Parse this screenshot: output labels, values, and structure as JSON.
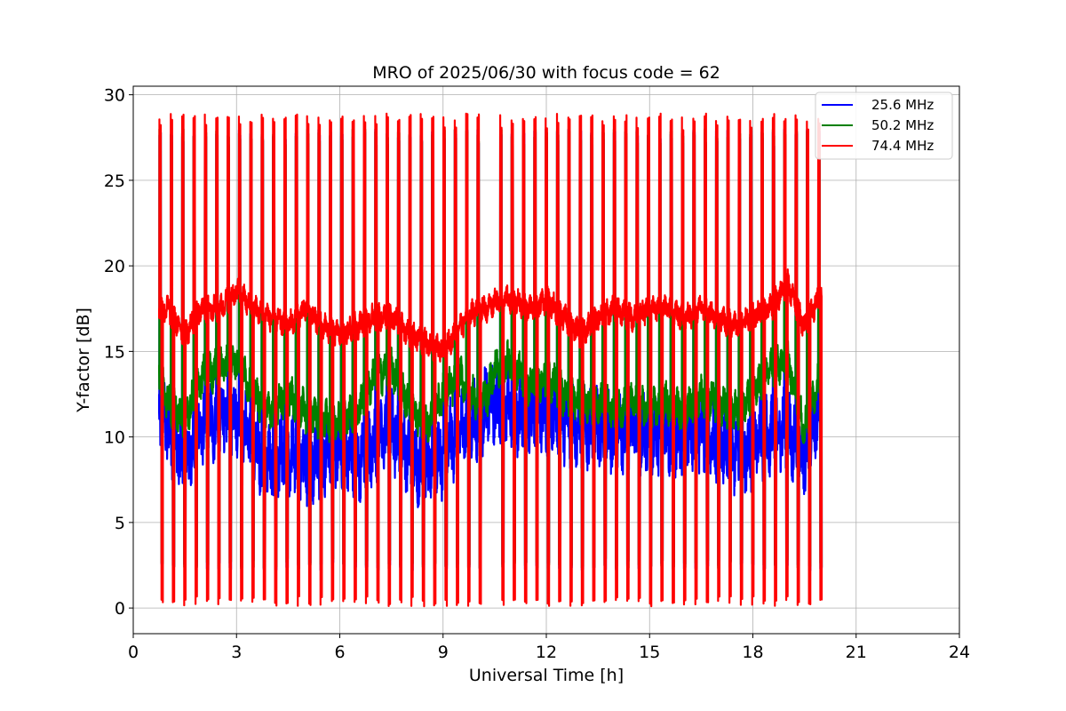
{
  "chart_data": {
    "type": "line",
    "title": "MRO of 2025/06/30 with focus code = 62",
    "xlabel": "Universal Time [h]",
    "ylabel": "Y-factor [dB]",
    "xlim": [
      0,
      24
    ],
    "ylim": [
      -1.5,
      30.5
    ],
    "x_ticks": [
      0,
      3,
      6,
      9,
      12,
      15,
      18,
      21,
      24
    ],
    "y_ticks": [
      0,
      5,
      10,
      15,
      20,
      25,
      30
    ],
    "x_tick_labels": [
      "0",
      "3",
      "6",
      "9",
      "12",
      "15",
      "18",
      "21",
      "24"
    ],
    "y_tick_labels": [
      "0",
      "5",
      "10",
      "15",
      "20",
      "25",
      "30"
    ],
    "grid": true,
    "legend_position": "top-right",
    "data_start_hour": 0.75,
    "data_end_hour": 20.0,
    "gap_hours": [
      10.3,
      10.5
    ],
    "spike_period_hours": 0.33,
    "series": [
      {
        "name": "25.6 MHz",
        "color": "#0000ff",
        "baseline": {
          "x": [
            0.75,
            1.0,
            1.5,
            2.0,
            2.5,
            3.0,
            3.5,
            4.0,
            4.5,
            5.0,
            5.5,
            6.0,
            6.5,
            7.0,
            7.5,
            8.0,
            8.5,
            9.0,
            9.5,
            10.0,
            10.3,
            10.5,
            11.0,
            11.5,
            12.0,
            12.5,
            13.0,
            13.5,
            14.0,
            14.5,
            15.0,
            15.5,
            16.0,
            16.5,
            17.0,
            17.5,
            18.0,
            18.5,
            19.0,
            19.5,
            20.0
          ],
          "y": [
            11.5,
            10.5,
            8.5,
            10.5,
            11.0,
            11.5,
            9.5,
            8.5,
            9.0,
            8.5,
            9.0,
            9.5,
            8.5,
            9.5,
            10.5,
            9.0,
            8.0,
            9.0,
            10.5,
            11.0,
            12.0,
            12.0,
            11.5,
            11.0,
            11.5,
            11.0,
            10.5,
            10.5,
            10.0,
            10.5,
            10.0,
            10.0,
            10.0,
            10.5,
            9.5,
            9.0,
            9.5,
            10.0,
            10.5,
            8.5,
            12.5
          ]
        },
        "spike_max": 28.0,
        "spike_min": 2.2
      },
      {
        "name": "50.2 MHz",
        "color": "#008000",
        "baseline": {
          "x": [
            0.75,
            1.0,
            1.5,
            2.0,
            2.5,
            3.0,
            3.5,
            4.0,
            4.5,
            5.0,
            5.5,
            6.0,
            6.5,
            7.0,
            7.5,
            8.0,
            8.5,
            9.0,
            9.5,
            10.0,
            10.3,
            10.5,
            11.0,
            11.5,
            12.0,
            12.5,
            13.0,
            13.5,
            14.0,
            14.5,
            15.0,
            15.5,
            16.0,
            16.5,
            17.0,
            17.5,
            18.0,
            18.5,
            19.0,
            19.5,
            20.0
          ],
          "y": [
            14.0,
            12.0,
            11.0,
            13.5,
            14.0,
            14.5,
            12.5,
            11.5,
            12.5,
            11.5,
            11.0,
            11.0,
            11.5,
            13.5,
            14.0,
            12.0,
            10.5,
            12.5,
            13.5,
            12.0,
            12.5,
            14.0,
            14.5,
            13.0,
            13.5,
            12.5,
            12.0,
            12.0,
            11.5,
            12.0,
            11.5,
            12.0,
            11.5,
            12.5,
            12.0,
            11.5,
            12.5,
            14.0,
            14.5,
            10.5,
            14.0
          ]
        },
        "spike_max": 28.0,
        "spike_min": 2.3
      },
      {
        "name": "74.4 MHz",
        "color": "#ff0000",
        "baseline": {
          "x": [
            0.75,
            1.0,
            1.5,
            2.0,
            2.5,
            3.0,
            3.5,
            4.0,
            4.5,
            5.0,
            5.5,
            6.0,
            6.5,
            7.0,
            7.5,
            8.0,
            8.5,
            9.0,
            9.5,
            10.0,
            10.3,
            10.5,
            11.0,
            11.5,
            12.0,
            12.5,
            13.0,
            13.5,
            14.0,
            14.5,
            15.0,
            15.5,
            16.0,
            16.5,
            17.0,
            17.5,
            18.0,
            18.5,
            19.0,
            19.5,
            20.0
          ],
          "y": [
            17.5,
            17.5,
            16.0,
            17.5,
            17.5,
            18.5,
            17.5,
            17.0,
            16.5,
            17.5,
            16.5,
            16.0,
            16.5,
            17.0,
            17.0,
            16.0,
            15.5,
            15.0,
            16.5,
            17.5,
            17.5,
            18.0,
            18.0,
            17.5,
            18.0,
            17.0,
            16.0,
            17.0,
            17.5,
            17.0,
            17.5,
            17.5,
            17.0,
            17.5,
            17.0,
            16.5,
            17.0,
            17.5,
            19.0,
            16.5,
            18.5
          ]
        },
        "spike_max": 28.9,
        "spike_min": 0.1
      }
    ]
  }
}
